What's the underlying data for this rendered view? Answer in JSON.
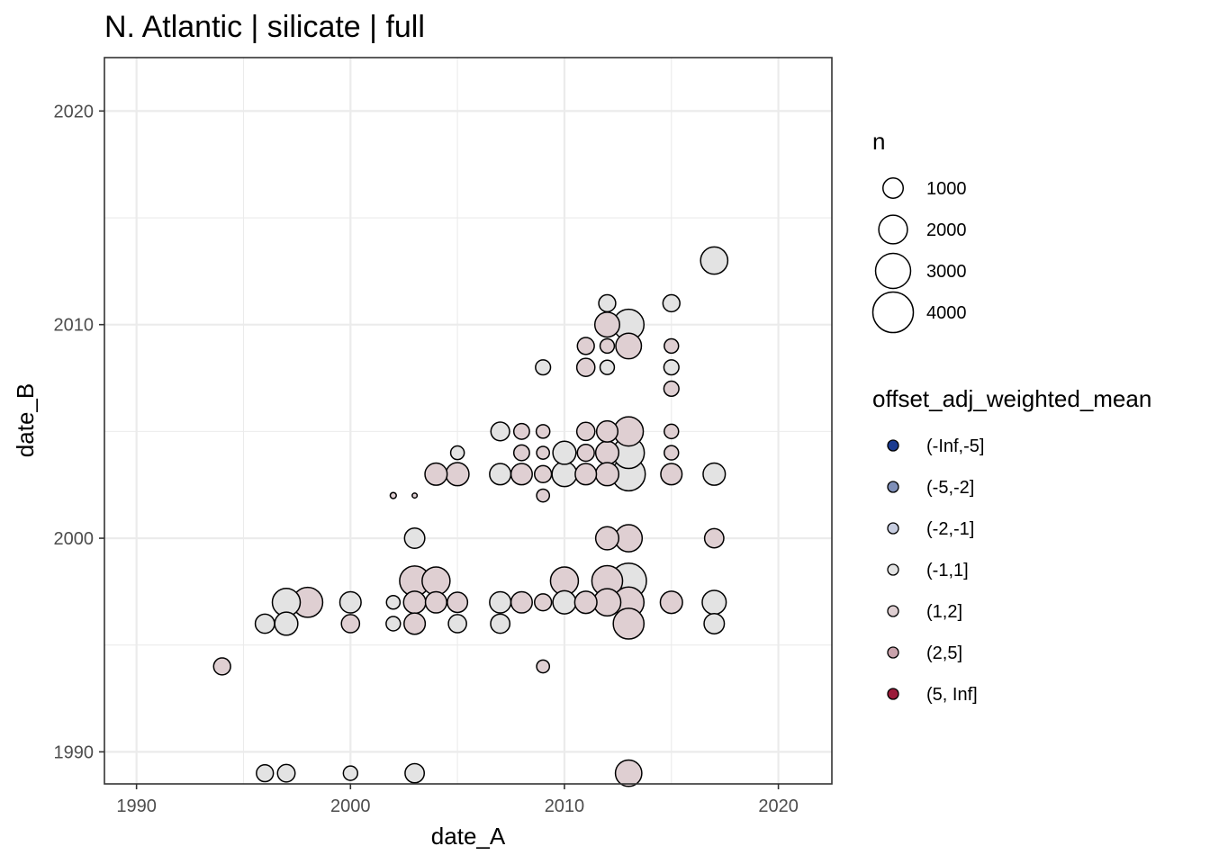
{
  "chart_data": {
    "type": "scatter",
    "title": "N. Atlantic | silicate | full",
    "xlabel": "date_A",
    "ylabel": "date_B",
    "xlim": [
      1988.5,
      2022.5
    ],
    "ylim": [
      1988.5,
      2022.5
    ],
    "x_ticks": [
      1990,
      2000,
      2010,
      2020
    ],
    "y_ticks": [
      1990,
      2000,
      2010,
      2020
    ],
    "grid": true,
    "legend_position": "right",
    "size_legend": {
      "title": "n",
      "entries": [
        {
          "label": "1000",
          "n": 1000
        },
        {
          "label": "2000",
          "n": 2000
        },
        {
          "label": "3000",
          "n": 3000
        },
        {
          "label": "4000",
          "n": 4000
        }
      ]
    },
    "color_legend": {
      "title": "offset_adj_weighted_mean",
      "entries": [
        {
          "label": "(-Inf,-5]",
          "color": "#1a3a8f"
        },
        {
          "label": "(-5,-2]",
          "color": "#7f8fb8"
        },
        {
          "label": "(-2,-1]",
          "color": "#c7cde0"
        },
        {
          "label": "(-1,1]",
          "color": "#e3e3e3"
        },
        {
          "label": "(1,2]",
          "color": "#dfcfd2"
        },
        {
          "label": "(2,5]",
          "color": "#c9a2ab"
        },
        {
          "label": "(5, Inf]",
          "color": "#9b1b3a"
        }
      ]
    },
    "points": [
      {
        "x": 1994,
        "y": 1994,
        "n": 700,
        "bin": "(1,2]"
      },
      {
        "x": 1996,
        "y": 1989,
        "n": 700,
        "bin": "(-1,1]"
      },
      {
        "x": 1996,
        "y": 1996,
        "n": 900,
        "bin": "(-1,1]"
      },
      {
        "x": 1997,
        "y": 1989,
        "n": 750,
        "bin": "(-1,1]"
      },
      {
        "x": 1997,
        "y": 1996,
        "n": 1300,
        "bin": "(-1,1]"
      },
      {
        "x": 1997,
        "y": 1997,
        "n": 1900,
        "bin": "(-1,1]"
      },
      {
        "x": 1998,
        "y": 1997,
        "n": 2200,
        "bin": "(1,2]"
      },
      {
        "x": 2000,
        "y": 1989,
        "n": 500,
        "bin": "(-1,1]"
      },
      {
        "x": 2000,
        "y": 1996,
        "n": 800,
        "bin": "(1,2]"
      },
      {
        "x": 2000,
        "y": 1997,
        "n": 1100,
        "bin": "(-1,1]"
      },
      {
        "x": 2002,
        "y": 2002,
        "n": 90,
        "bin": "(1,2]"
      },
      {
        "x": 2002,
        "y": 1997,
        "n": 450,
        "bin": "(-1,1]"
      },
      {
        "x": 2002,
        "y": 1996,
        "n": 500,
        "bin": "(-1,1]"
      },
      {
        "x": 2003,
        "y": 2002,
        "n": 60,
        "bin": "(1,2]"
      },
      {
        "x": 2003,
        "y": 2000,
        "n": 1000,
        "bin": "(-1,1]"
      },
      {
        "x": 2003,
        "y": 1998,
        "n": 2200,
        "bin": "(1,2]"
      },
      {
        "x": 2003,
        "y": 1997,
        "n": 1200,
        "bin": "(1,2]"
      },
      {
        "x": 2003,
        "y": 1996,
        "n": 1100,
        "bin": "(1,2]"
      },
      {
        "x": 2003,
        "y": 1989,
        "n": 900,
        "bin": "(-1,1]"
      },
      {
        "x": 2004,
        "y": 2003,
        "n": 1200,
        "bin": "(1,2]"
      },
      {
        "x": 2004,
        "y": 1998,
        "n": 1900,
        "bin": "(1,2]"
      },
      {
        "x": 2004,
        "y": 1997,
        "n": 1100,
        "bin": "(1,2]"
      },
      {
        "x": 2005,
        "y": 2004,
        "n": 450,
        "bin": "(-1,1]"
      },
      {
        "x": 2005,
        "y": 2003,
        "n": 1300,
        "bin": "(1,2]"
      },
      {
        "x": 2005,
        "y": 1997,
        "n": 1000,
        "bin": "(1,2]"
      },
      {
        "x": 2005,
        "y": 1996,
        "n": 800,
        "bin": "(-1,1]"
      },
      {
        "x": 2007,
        "y": 2005,
        "n": 850,
        "bin": "(-1,1]"
      },
      {
        "x": 2007,
        "y": 2003,
        "n": 1100,
        "bin": "(-1,1]"
      },
      {
        "x": 2007,
        "y": 1997,
        "n": 1100,
        "bin": "(-1,1]"
      },
      {
        "x": 2007,
        "y": 1996,
        "n": 900,
        "bin": "(-1,1]"
      },
      {
        "x": 2008,
        "y": 2005,
        "n": 600,
        "bin": "(1,2]"
      },
      {
        "x": 2008,
        "y": 2004,
        "n": 600,
        "bin": "(1,2]"
      },
      {
        "x": 2008,
        "y": 2003,
        "n": 1100,
        "bin": "(1,2]"
      },
      {
        "x": 2008,
        "y": 1997,
        "n": 1100,
        "bin": "(1,2]"
      },
      {
        "x": 2009,
        "y": 2008,
        "n": 550,
        "bin": "(-1,1]"
      },
      {
        "x": 2009,
        "y": 2005,
        "n": 450,
        "bin": "(1,2]"
      },
      {
        "x": 2009,
        "y": 2004,
        "n": 400,
        "bin": "(1,2]"
      },
      {
        "x": 2009,
        "y": 2003,
        "n": 700,
        "bin": "(1,2]"
      },
      {
        "x": 2009,
        "y": 2002,
        "n": 400,
        "bin": "(1,2]"
      },
      {
        "x": 2009,
        "y": 1997,
        "n": 700,
        "bin": "(1,2]"
      },
      {
        "x": 2009,
        "y": 1994,
        "n": 400,
        "bin": "(1,2]"
      },
      {
        "x": 2010,
        "y": 2004,
        "n": 1300,
        "bin": "(-1,1]"
      },
      {
        "x": 2010,
        "y": 2003,
        "n": 1500,
        "bin": "(-1,1]"
      },
      {
        "x": 2010,
        "y": 1998,
        "n": 1900,
        "bin": "(1,2]"
      },
      {
        "x": 2010,
        "y": 1997,
        "n": 1300,
        "bin": "(-1,1]"
      },
      {
        "x": 2011,
        "y": 2009,
        "n": 700,
        "bin": "(1,2]"
      },
      {
        "x": 2011,
        "y": 2008,
        "n": 800,
        "bin": "(1,2]"
      },
      {
        "x": 2011,
        "y": 2005,
        "n": 800,
        "bin": "(1,2]"
      },
      {
        "x": 2011,
        "y": 2004,
        "n": 700,
        "bin": "(1,2]"
      },
      {
        "x": 2011,
        "y": 2003,
        "n": 1100,
        "bin": "(1,2]"
      },
      {
        "x": 2011,
        "y": 1997,
        "n": 1200,
        "bin": "(1,2]"
      },
      {
        "x": 2012,
        "y": 2011,
        "n": 700,
        "bin": "(-1,1]"
      },
      {
        "x": 2012,
        "y": 2010,
        "n": 1500,
        "bin": "(1,2]"
      },
      {
        "x": 2012,
        "y": 2009,
        "n": 500,
        "bin": "(1,2]"
      },
      {
        "x": 2012,
        "y": 2008,
        "n": 500,
        "bin": "(-1,1]"
      },
      {
        "x": 2012,
        "y": 2005,
        "n": 1100,
        "bin": "(1,2]"
      },
      {
        "x": 2012,
        "y": 2004,
        "n": 1300,
        "bin": "(1,2]"
      },
      {
        "x": 2012,
        "y": 2003,
        "n": 1300,
        "bin": "(1,2]"
      },
      {
        "x": 2012,
        "y": 2000,
        "n": 1300,
        "bin": "(1,2]"
      },
      {
        "x": 2012,
        "y": 1998,
        "n": 2300,
        "bin": "(1,2]"
      },
      {
        "x": 2012,
        "y": 1997,
        "n": 1800,
        "bin": "(1,2]"
      },
      {
        "x": 2013,
        "y": 2010,
        "n": 2300,
        "bin": "(-1,1]"
      },
      {
        "x": 2013,
        "y": 2009,
        "n": 1600,
        "bin": "(1,2]"
      },
      {
        "x": 2013,
        "y": 2005,
        "n": 2100,
        "bin": "(1,2]"
      },
      {
        "x": 2013,
        "y": 2004,
        "n": 2400,
        "bin": "(-1,1]"
      },
      {
        "x": 2013,
        "y": 2003,
        "n": 2700,
        "bin": "(-1,1]"
      },
      {
        "x": 2013,
        "y": 2000,
        "n": 1800,
        "bin": "(1,2]"
      },
      {
        "x": 2013,
        "y": 1998,
        "n": 3100,
        "bin": "(-1,1]"
      },
      {
        "x": 2013,
        "y": 1997,
        "n": 2300,
        "bin": "(1,2]"
      },
      {
        "x": 2013,
        "y": 1996,
        "n": 2300,
        "bin": "(1,2]"
      },
      {
        "x": 2013,
        "y": 1989,
        "n": 1700,
        "bin": "(1,2]"
      },
      {
        "x": 2015,
        "y": 2011,
        "n": 700,
        "bin": "(-1,1]"
      },
      {
        "x": 2015,
        "y": 2009,
        "n": 500,
        "bin": "(1,2]"
      },
      {
        "x": 2015,
        "y": 2008,
        "n": 550,
        "bin": "(-1,1]"
      },
      {
        "x": 2015,
        "y": 2007,
        "n": 550,
        "bin": "(1,2]"
      },
      {
        "x": 2015,
        "y": 2005,
        "n": 500,
        "bin": "(1,2]"
      },
      {
        "x": 2015,
        "y": 2004,
        "n": 500,
        "bin": "(1,2]"
      },
      {
        "x": 2015,
        "y": 2003,
        "n": 1100,
        "bin": "(1,2]"
      },
      {
        "x": 2015,
        "y": 1997,
        "n": 1200,
        "bin": "(1,2]"
      },
      {
        "x": 2017,
        "y": 2013,
        "n": 1800,
        "bin": "(-1,1]"
      },
      {
        "x": 2017,
        "y": 2003,
        "n": 1200,
        "bin": "(-1,1]"
      },
      {
        "x": 2017,
        "y": 2000,
        "n": 900,
        "bin": "(1,2]"
      },
      {
        "x": 2017,
        "y": 1997,
        "n": 1400,
        "bin": "(-1,1]"
      },
      {
        "x": 2017,
        "y": 1996,
        "n": 1000,
        "bin": "(-1,1]"
      }
    ]
  }
}
